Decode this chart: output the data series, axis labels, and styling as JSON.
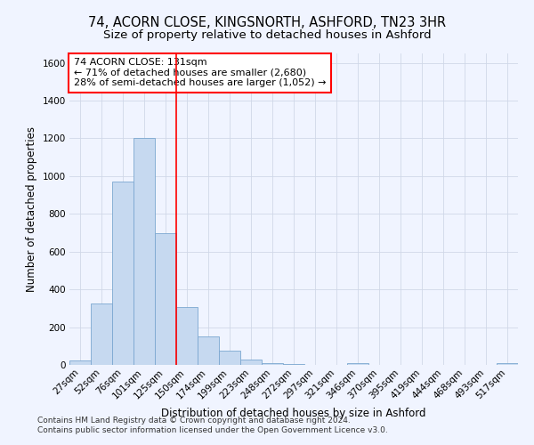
{
  "title_line1": "74, ACORN CLOSE, KINGSNORTH, ASHFORD, TN23 3HR",
  "title_line2": "Size of property relative to detached houses in Ashford",
  "xlabel": "Distribution of detached houses by size in Ashford",
  "ylabel": "Number of detached properties",
  "bar_labels": [
    "27sqm",
    "52sqm",
    "76sqm",
    "101sqm",
    "125sqm",
    "150sqm",
    "174sqm",
    "199sqm",
    "223sqm",
    "248sqm",
    "272sqm",
    "297sqm",
    "321sqm",
    "346sqm",
    "370sqm",
    "395sqm",
    "419sqm",
    "444sqm",
    "468sqm",
    "493sqm",
    "517sqm"
  ],
  "bar_values": [
    25,
    325,
    970,
    1200,
    700,
    305,
    150,
    75,
    30,
    10,
    5,
    0,
    0,
    10,
    0,
    0,
    0,
    0,
    0,
    0,
    10
  ],
  "bar_color": "#c6d9f0",
  "bar_edge_color": "#7ba7d0",
  "background_color": "#f0f4ff",
  "grid_color": "#d0d8e8",
  "vline_color": "red",
  "annotation_text": "74 ACORN CLOSE: 131sqm\n← 71% of detached houses are smaller (2,680)\n28% of semi-detached houses are larger (1,052) →",
  "annotation_box_color": "white",
  "annotation_box_edge_color": "red",
  "ylim": [
    0,
    1650
  ],
  "yticks": [
    0,
    200,
    400,
    600,
    800,
    1000,
    1200,
    1400,
    1600
  ],
  "footer_line1": "Contains HM Land Registry data © Crown copyright and database right 2024.",
  "footer_line2": "Contains public sector information licensed under the Open Government Licence v3.0.",
  "title_fontsize": 10.5,
  "subtitle_fontsize": 9.5,
  "axis_label_fontsize": 8.5,
  "tick_fontsize": 7.5,
  "annotation_fontsize": 8,
  "footer_fontsize": 6.5
}
